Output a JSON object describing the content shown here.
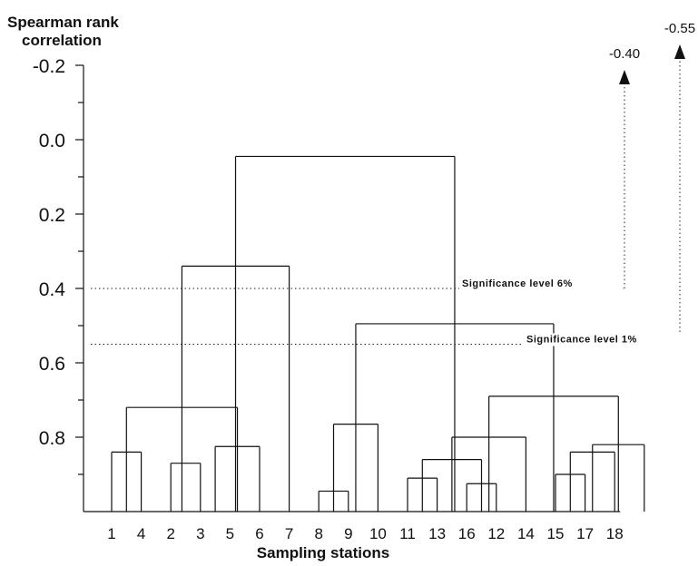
{
  "chart_data": {
    "type": "dendrogram",
    "ylabel": [
      "Spearman rank",
      "correlation"
    ],
    "xlabel": "Sampling stations",
    "yticks": [
      "-0.2",
      "0.0",
      "0.2",
      "0.4",
      "0.6",
      "0.8"
    ],
    "ytick_values": [
      -0.2,
      0.0,
      0.2,
      0.4,
      0.6,
      0.8
    ],
    "ylim": [
      -0.2,
      1.0
    ],
    "leaves": [
      "1",
      "4",
      "2",
      "3",
      "5",
      "6",
      "7",
      "8",
      "9",
      "10",
      "11",
      "13",
      "16",
      "12",
      "14",
      "15",
      "17",
      "18"
    ],
    "merges": [
      {
        "left": 0.0,
        "right": 1.0,
        "level": 0.84
      },
      {
        "left": 2.0,
        "right": 3.0,
        "level": 0.87
      },
      {
        "left": 3.5,
        "right": 5.0,
        "level": 0.825
      },
      {
        "left": 0.5,
        "right": 4.25,
        "level": 0.72
      },
      {
        "left": 2.375,
        "right": 6.0,
        "level": 0.34
      },
      {
        "left": 7.0,
        "right": 8.0,
        "level": 0.945
      },
      {
        "left": 7.5,
        "right": 9.0,
        "level": 0.765
      },
      {
        "left": 10.0,
        "right": 11.0,
        "level": 0.91
      },
      {
        "left": 12.0,
        "right": 13.0,
        "level": 0.925
      },
      {
        "left": 10.5,
        "right": 12.5,
        "level": 0.86
      },
      {
        "left": 11.5,
        "right": 14.0,
        "level": 0.8
      },
      {
        "left": 15.0,
        "right": 16.0,
        "level": 0.9
      },
      {
        "left": 15.5,
        "right": 17.0,
        "level": 0.84
      },
      {
        "left": 16.25,
        "right": 18.0,
        "level": 0.82
      },
      {
        "left": 12.75,
        "right": 17.125,
        "level": 0.69
      },
      {
        "left": 8.25,
        "right": 14.9375,
        "level": 0.495
      },
      {
        "left": 4.1875,
        "right": 11.59375,
        "level": 0.045
      }
    ],
    "significance_lines": [
      {
        "label": "Significance level 6%",
        "level": 0.4,
        "arrow_label": "-0.40"
      },
      {
        "label": "Significance level 1%",
        "level": 0.55,
        "arrow_label": "-0.55"
      }
    ]
  }
}
